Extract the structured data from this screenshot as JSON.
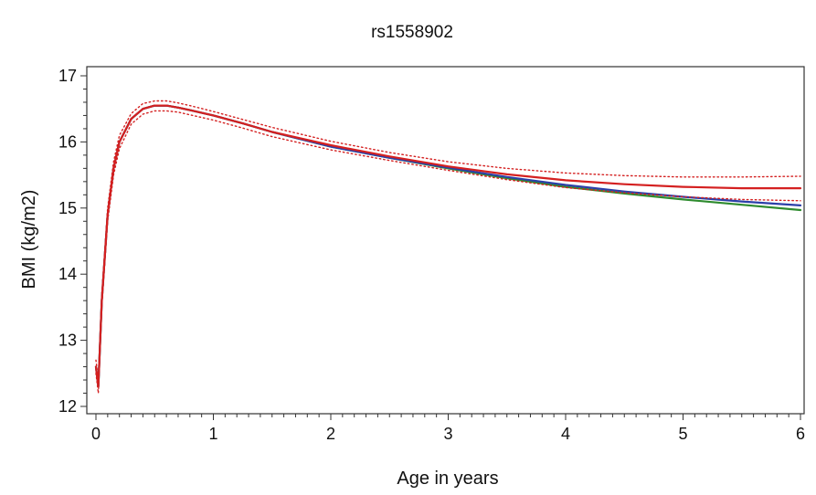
{
  "chart_data": {
    "type": "line",
    "title": "rs1558902",
    "xlabel": "Age in years",
    "ylabel": "BMI (kg/m2)",
    "xlim": [
      0,
      6
    ],
    "ylim": [
      12,
      17
    ],
    "xticks": [
      0,
      1,
      2,
      3,
      4,
      5,
      6
    ],
    "yticks": [
      12,
      13,
      14,
      15,
      16,
      17
    ],
    "grid": false,
    "legend": "none",
    "series": [
      {
        "color": "#2e8b2e",
        "style": "solid",
        "x": [
          0,
          0.02,
          0.05,
          0.1,
          0.15,
          0.2,
          0.3,
          0.4,
          0.5,
          0.6,
          0.7,
          0.8,
          1.0,
          1.25,
          1.5,
          2.0,
          2.5,
          3.0,
          3.5,
          4.0,
          4.5,
          5.0,
          5.5,
          6.0
        ],
        "y": [
          12.6,
          12.3,
          13.6,
          14.9,
          15.6,
          16.0,
          16.35,
          16.5,
          16.55,
          16.55,
          16.52,
          16.48,
          16.4,
          16.28,
          16.15,
          15.93,
          15.76,
          15.6,
          15.45,
          15.32,
          15.22,
          15.13,
          15.05,
          14.97
        ]
      },
      {
        "color": "#2b3fa8",
        "style": "solid",
        "x": [
          0,
          0.02,
          0.05,
          0.1,
          0.15,
          0.2,
          0.3,
          0.4,
          0.5,
          0.6,
          0.7,
          0.8,
          1.0,
          1.25,
          1.5,
          2.0,
          2.5,
          3.0,
          3.5,
          4.0,
          4.5,
          5.0,
          5.5,
          6.0
        ],
        "y": [
          12.6,
          12.3,
          13.6,
          14.9,
          15.6,
          16.0,
          16.35,
          16.5,
          16.55,
          16.55,
          16.52,
          16.48,
          16.4,
          16.28,
          16.15,
          15.93,
          15.76,
          15.61,
          15.47,
          15.35,
          15.25,
          15.17,
          15.1,
          15.04
        ]
      },
      {
        "color": "#d42020",
        "style": "solid",
        "x": [
          0,
          0.02,
          0.05,
          0.1,
          0.15,
          0.2,
          0.3,
          0.4,
          0.5,
          0.6,
          0.7,
          0.8,
          1.0,
          1.25,
          1.5,
          2.0,
          2.5,
          3.0,
          3.5,
          4.0,
          4.5,
          5.0,
          5.5,
          6.0
        ],
        "y": [
          12.6,
          12.3,
          13.6,
          14.9,
          15.6,
          16.0,
          16.35,
          16.5,
          16.55,
          16.55,
          16.52,
          16.48,
          16.4,
          16.28,
          16.15,
          15.95,
          15.78,
          15.63,
          15.51,
          15.42,
          15.36,
          15.32,
          15.3,
          15.3
        ]
      },
      {
        "color": "#d42020",
        "style": "dotted",
        "x": [
          0,
          0.02,
          0.05,
          0.1,
          0.15,
          0.2,
          0.3,
          0.4,
          0.5,
          0.6,
          0.7,
          0.8,
          1.0,
          1.25,
          1.5,
          2.0,
          2.5,
          3.0,
          3.5,
          4.0,
          4.5,
          5.0,
          5.5,
          6.0
        ],
        "y": [
          12.7,
          12.4,
          13.7,
          15.0,
          15.7,
          16.1,
          16.43,
          16.58,
          16.62,
          16.62,
          16.59,
          16.55,
          16.46,
          16.34,
          16.22,
          16.01,
          15.84,
          15.7,
          15.6,
          15.53,
          15.49,
          15.47,
          15.47,
          15.48
        ]
      },
      {
        "color": "#d42020",
        "style": "dotted",
        "x": [
          0,
          0.02,
          0.05,
          0.1,
          0.15,
          0.2,
          0.3,
          0.4,
          0.5,
          0.6,
          0.7,
          0.8,
          1.0,
          1.25,
          1.5,
          2.0,
          2.5,
          3.0,
          3.5,
          4.0,
          4.5,
          5.0,
          5.5,
          6.0
        ],
        "y": [
          12.5,
          12.2,
          13.5,
          14.8,
          15.5,
          15.9,
          16.27,
          16.42,
          16.47,
          16.47,
          16.45,
          16.41,
          16.33,
          16.21,
          16.08,
          15.88,
          15.72,
          15.57,
          15.43,
          15.31,
          15.23,
          15.17,
          15.13,
          15.11
        ]
      }
    ]
  }
}
